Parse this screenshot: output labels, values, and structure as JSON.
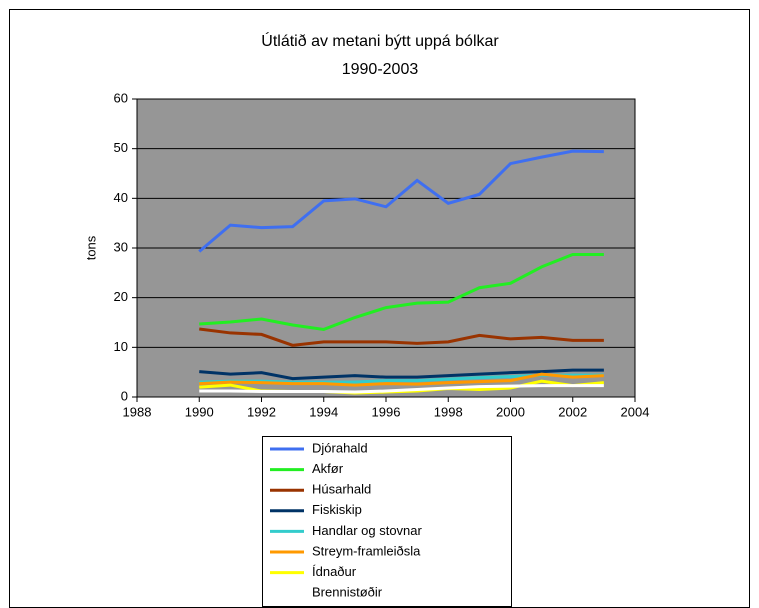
{
  "chart_data": {
    "type": "line",
    "title": "Útlátið av metani býtt uppá bólkar",
    "subtitle": "1990-2003",
    "y_label": "tons",
    "x": [
      1990,
      1991,
      1992,
      1993,
      1994,
      1995,
      1996,
      1997,
      1998,
      1999,
      2000,
      2001,
      2002,
      2003
    ],
    "xlim": [
      1988,
      2004
    ],
    "xticks": [
      1988,
      1990,
      1992,
      1994,
      1996,
      1998,
      2000,
      2002,
      2004
    ],
    "ylim": [
      0,
      60
    ],
    "yticks": [
      0,
      10,
      20,
      30,
      40,
      50,
      60
    ],
    "grid": true,
    "legend": "bottom",
    "series": [
      {
        "name": "Djórahald",
        "color": "#3f6ff0",
        "values": [
          29.3,
          34.6,
          34.1,
          34.3,
          39.5,
          39.9,
          38.3,
          43.6,
          39.0,
          40.8,
          47.0,
          48.3,
          49.5,
          49.4
        ]
      },
      {
        "name": "Akfør",
        "color": "#22ee22",
        "values": [
          14.7,
          15.1,
          15.7,
          14.5,
          13.6,
          16.0,
          18.0,
          18.9,
          19.1,
          22.0,
          22.9,
          26.2,
          28.7,
          28.7
        ]
      },
      {
        "name": "Húsarhald",
        "color": "#993300",
        "values": [
          13.7,
          12.9,
          12.6,
          10.4,
          11.1,
          11.1,
          11.1,
          10.8,
          11.1,
          12.4,
          11.7,
          12.0,
          11.4,
          11.4
        ]
      },
      {
        "name": "Fiskiskip",
        "color": "#003366",
        "values": [
          5.1,
          4.6,
          4.9,
          3.7,
          4.0,
          4.3,
          4.0,
          4.0,
          4.3,
          4.6,
          4.9,
          5.1,
          5.4,
          5.4
        ]
      },
      {
        "name": "Handlar og stovnar",
        "color": "#33cccc",
        "values": [
          3.0,
          3.2,
          3.2,
          3.0,
          3.0,
          3.0,
          3.3,
          3.3,
          3.6,
          3.9,
          4.1,
          4.4,
          4.4,
          4.4
        ]
      },
      {
        "name": "Streym-framleiðsla",
        "color": "#ff9900",
        "values": [
          2.7,
          3.0,
          2.9,
          2.7,
          2.7,
          2.4,
          2.7,
          2.6,
          2.9,
          3.1,
          3.3,
          4.6,
          4.0,
          4.3
        ]
      },
      {
        "name": "Ídnaður",
        "color": "#ffff00",
        "values": [
          2.0,
          2.4,
          1.2,
          1.1,
          1.1,
          0.8,
          1.0,
          1.2,
          1.7,
          1.5,
          1.8,
          3.2,
          2.3,
          2.9
        ]
      },
      {
        "name": "Brennistøðir",
        "color": "#ffffff",
        "values": [
          1.2,
          1.2,
          1.1,
          1.1,
          1.1,
          1.0,
          1.2,
          1.5,
          1.8,
          2.1,
          2.2,
          2.3,
          2.3,
          2.3
        ]
      }
    ]
  }
}
